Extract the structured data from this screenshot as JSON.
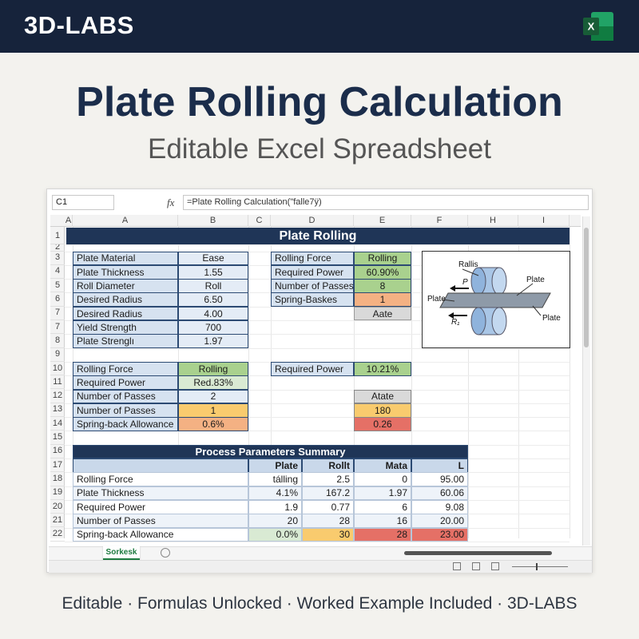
{
  "header": {
    "brand": "3D-LABS",
    "app_icon": "X"
  },
  "title": "Plate Rolling Calculation",
  "subtitle": "Editable Excel Spreadsheet",
  "spreadsheet": {
    "name_box": "C1",
    "fx": "fx",
    "formula": "=Plate Rolling Calculation(\"falle7ÿ)",
    "columns": [
      "A",
      "A",
      "B",
      "C",
      "D",
      "E",
      "F",
      "H",
      "I"
    ],
    "row_numbers": [
      1,
      2,
      3,
      4,
      5,
      6,
      7,
      7,
      8,
      9,
      10,
      11,
      12,
      13,
      14,
      15,
      16,
      17,
      18,
      19,
      20,
      21,
      22
    ],
    "sheet_title": "Plate Rolling",
    "material_table": [
      [
        "Plate Material",
        "Ease"
      ],
      [
        "Plate Thickness",
        "1.55"
      ],
      [
        "Roll Diameter",
        "Roll"
      ],
      [
        "Desired Radius",
        "6.50"
      ],
      [
        "Desired Radius",
        "4.00"
      ],
      [
        "Yield Strength",
        "700"
      ],
      [
        "Plate Strenglı",
        "1.97"
      ]
    ],
    "force_table": [
      [
        "Rolling Force",
        "Rolling"
      ],
      [
        "Required Power",
        "60.90%"
      ],
      [
        "Number of Passes",
        "8"
      ],
      [
        "Spring-Baskes",
        "1"
      ]
    ],
    "force_note": "Aate",
    "diagram": {
      "rollers": "Rallis",
      "plate_top": "Plate",
      "plate_left": "Plate",
      "plate_bottom": "Plate",
      "force": "P",
      "radius": "R₁"
    },
    "results_table": [
      [
        "Rolling Force",
        "Rolling"
      ],
      [
        "Required Power",
        "Red.83%"
      ],
      [
        "Number of Passes",
        "2"
      ],
      [
        "Number of Passes",
        "1"
      ],
      [
        "Spring-back Allowance",
        "0.6%"
      ]
    ],
    "power": [
      "Required Power",
      "10.21%"
    ],
    "power_results": [
      "Atate",
      "180",
      "0.26"
    ],
    "summary": {
      "title": "Process Parameters Summary",
      "headers": [
        "Plate",
        "Rollt",
        "Mata",
        "L"
      ],
      "rows": [
        [
          "Rolling Force",
          "tálling",
          "2.5",
          "0",
          "95.00"
        ],
        [
          "Plate Thickness",
          "4.1%",
          "167.2",
          "1.97",
          "60.06"
        ],
        [
          "Required Power",
          "1.9",
          "0.77",
          "6",
          "9.08"
        ],
        [
          "Number of Passes",
          "20",
          "28",
          "16",
          "20.00"
        ],
        [
          "Spring-back Allowance",
          "0.0%",
          "30",
          "28",
          "23.00"
        ]
      ]
    },
    "sheet_tab": "Sorkesk"
  },
  "footer": "Editable · Formulas Unlocked · Worked Example Included · 3D-LABS"
}
